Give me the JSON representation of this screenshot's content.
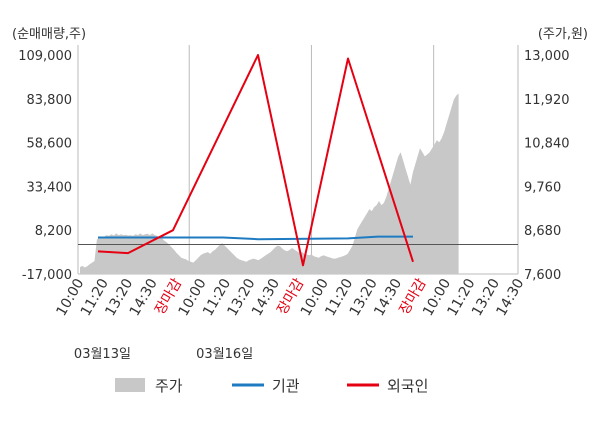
{
  "chart_data": {
    "type": "line",
    "left_axis": {
      "unit": "(순매매량,주)",
      "ticks": [
        "109,000",
        "83,800",
        "58,600",
        "33,400",
        "8,200",
        "-17,000"
      ],
      "range": [
        -17000,
        109000
      ]
    },
    "right_axis": {
      "unit": "(주가,원)",
      "ticks": [
        "13,000",
        "11,920",
        "10,840",
        "9,760",
        "8,680",
        "7,600"
      ],
      "range": [
        7600,
        13000
      ]
    },
    "x_ticks": [
      {
        "label": "10:00",
        "red": false
      },
      {
        "label": "11:20",
        "red": false
      },
      {
        "label": "13:20",
        "red": false
      },
      {
        "label": "14:30",
        "red": false
      },
      {
        "label": "장마감",
        "red": true
      },
      {
        "label": "10:00",
        "red": false
      },
      {
        "label": "11:20",
        "red": false
      },
      {
        "label": "13:20",
        "red": false
      },
      {
        "label": "14:30",
        "red": false
      },
      {
        "label": "장마감",
        "red": true
      },
      {
        "label": "10:00",
        "red": false
      },
      {
        "label": "11:20",
        "red": false
      },
      {
        "label": "13:20",
        "red": false
      },
      {
        "label": "14:30",
        "red": false
      },
      {
        "label": "장마감",
        "red": true
      },
      {
        "label": "10:00",
        "red": false
      },
      {
        "label": "11:20",
        "red": false
      },
      {
        "label": "13:20",
        "red": false
      },
      {
        "label": "14:30",
        "red": false
      }
    ],
    "dates": [
      {
        "label": "03월13일",
        "tick_index": 1
      },
      {
        "label": "03월16일",
        "tick_index": 6
      }
    ],
    "day_dividers": [
      5,
      10,
      15
    ],
    "price_series": {
      "name": "주가",
      "color": "#c8c8c8",
      "values": [
        7770,
        7800,
        7760,
        7790,
        7840,
        7880,
        7920,
        8450,
        8500,
        8480,
        8520,
        8560,
        8540,
        8580,
        8550,
        8600,
        8560,
        8580,
        8560,
        8570,
        8550,
        8560,
        8540,
        8580,
        8560,
        8600,
        8560,
        8580,
        8590,
        8560,
        8600,
        8560,
        8540,
        8500,
        8480,
        8420,
        8380,
        8320,
        8260,
        8200,
        8120,
        8060,
        8000,
        7980,
        7960,
        7920,
        7900,
        7880,
        7940,
        8000,
        8060,
        8100,
        8120,
        8140,
        8100,
        8160,
        8200,
        8260,
        8320,
        8360,
        8300,
        8240,
        8180,
        8120,
        8060,
        8000,
        7960,
        7940,
        7920,
        7900,
        7940,
        7960,
        7980,
        7960,
        7940,
        7980,
        8020,
        8060,
        8100,
        8140,
        8200,
        8260,
        8300,
        8280,
        8220,
        8180,
        8160,
        8200,
        8240,
        8200,
        8160,
        8120,
        8140,
        8100,
        8080,
        8060,
        8080,
        8040,
        8020,
        8000,
        8040,
        8060,
        8040,
        8020,
        8000,
        7980,
        7980,
        8000,
        8020,
        8040,
        8060,
        8100,
        8200,
        8300,
        8500,
        8700,
        8800,
        8900,
        9000,
        9100,
        9200,
        9150,
        9250,
        9300,
        9400,
        9300,
        9350,
        9500,
        9700,
        9900,
        10100,
        10300,
        10500,
        10600,
        10400,
        10200,
        10000,
        9800,
        10100,
        10300,
        10500,
        10700,
        10600,
        10500,
        10550,
        10600,
        10700,
        10800,
        10900,
        10850,
        10950,
        11100,
        11300,
        11500,
        11700,
        11900,
        12000,
        12050
      ]
    },
    "institution_series": {
      "name": "기관",
      "color": "#1f7bc1",
      "points": [
        [
          20,
          4000
        ],
        [
          145,
          4000
        ],
        [
          180,
          3000
        ],
        [
          270,
          3500
        ],
        [
          300,
          4500
        ],
        [
          335,
          4500
        ]
      ]
    },
    "foreign_series": {
      "name": "외국인",
      "color": "#e50012",
      "points": [
        [
          20,
          -4000
        ],
        [
          50,
          -5000
        ],
        [
          95,
          8200
        ],
        [
          180,
          109000
        ],
        [
          225,
          -12000
        ],
        [
          270,
          107000
        ],
        [
          335,
          -10000
        ]
      ]
    },
    "x_range": [
      0,
      440
    ],
    "baseline_value": 0,
    "legend": [
      {
        "name": "주가",
        "color": "#c8c8c8",
        "style": "box"
      },
      {
        "name": "기관",
        "color": "#1f7bc1",
        "style": "line"
      },
      {
        "name": "외국인",
        "color": "#e50012",
        "style": "line"
      }
    ]
  }
}
